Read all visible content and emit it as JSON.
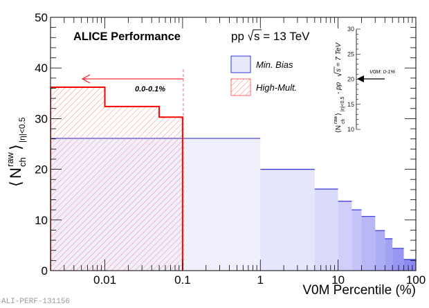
{
  "chart_data": {
    "type": "bar",
    "title": "ALICE Performance",
    "subtitle": "pp √s = 13 TeV",
    "xlabel": "V0M Percentile (%)",
    "ylabel": "⟨N_ch^raw⟩_|η|<0.5",
    "xscale": "log",
    "xlim": [
      0.002,
      100
    ],
    "ylim": [
      0,
      50
    ],
    "x_ticks": [
      "0.01",
      "0.1",
      "1",
      "10",
      "100"
    ],
    "x_tick_values": [
      0.01,
      0.1,
      1,
      10,
      100
    ],
    "y_ticks": [
      "0",
      "10",
      "20",
      "30",
      "40",
      "50"
    ],
    "y_tick_values": [
      0,
      10,
      20,
      30,
      40,
      50
    ],
    "legend_position": "top-center",
    "series": [
      {
        "name": "Min. Bias",
        "style": "filled-gradient",
        "color": "#3333dd",
        "bins": [
          {
            "low": 0,
            "high": 1,
            "value": 26.1
          },
          {
            "low": 1,
            "high": 5,
            "value": 20.0
          },
          {
            "low": 5,
            "high": 10,
            "value": 16.1
          },
          {
            "low": 10,
            "high": 15,
            "value": 13.7
          },
          {
            "low": 15,
            "high": 20,
            "value": 12.0
          },
          {
            "low": 20,
            "high": 30,
            "value": 10.7
          },
          {
            "low": 30,
            "high": 40,
            "value": 7.9
          },
          {
            "low": 40,
            "high": 50,
            "value": 6.3
          },
          {
            "low": 50,
            "high": 70,
            "value": 4.4
          },
          {
            "low": 70,
            "high": 100,
            "value": 2.2
          }
        ]
      },
      {
        "name": "High-Mult.",
        "style": "hatched",
        "color": "#ff0000",
        "bins": [
          {
            "low": 0,
            "high": 0.01,
            "value": 36.2
          },
          {
            "low": 0.01,
            "high": 0.05,
            "value": 32.4
          },
          {
            "low": 0.05,
            "high": 0.1,
            "value": 30.3
          }
        ]
      }
    ],
    "annotations": [
      {
        "text": "0.0-0.1%",
        "arrow": "left",
        "from_x": 0.1,
        "to_x": 0.004,
        "y": 37.9,
        "color": "#ff0000"
      }
    ],
    "inset": {
      "ylabel": "⟨N_ch^raw⟩_|η|<0.5 - pp √s = 7 TeV",
      "ylim": [
        10,
        30
      ],
      "y_ticks": [
        "10",
        "15",
        "20",
        "25",
        "30"
      ],
      "y_tick_values": [
        10,
        15,
        20,
        25,
        30
      ],
      "marker": {
        "label": "V0M: 0-1%",
        "value": 20
      }
    }
  },
  "legend": {
    "items": [
      {
        "label": "Min. Bias",
        "color": "#3333dd"
      },
      {
        "label": "High-Mult.",
        "color": "#ff0000"
      }
    ]
  },
  "texts": {
    "title": "ALICE Performance",
    "energy_pp": "pp",
    "energy_rest": "s = 13 TeV",
    "xlabel": "V0M Percentile (%)",
    "hm_range": "0.0-0.1%",
    "inset_marker": "V0M: 0-1%",
    "inset_ylabel_a": "⟨N",
    "inset_ylabel_sup": "raw",
    "inset_ylabel_sub": "ch",
    "inset_ylabel_rest": "⟩",
    "inset_ylabel_eta": "|η|<0.5",
    "inset_ylabel_tail_pp": " - pp ",
    "inset_ylabel_tail_s": "s = 7 TeV",
    "ylabel_N": "N",
    "ylabel_sup": "raw",
    "ylabel_sub": "ch",
    "ylabel_eta": "|η|<0.5",
    "watermark": "ALI-PERF-131156"
  }
}
